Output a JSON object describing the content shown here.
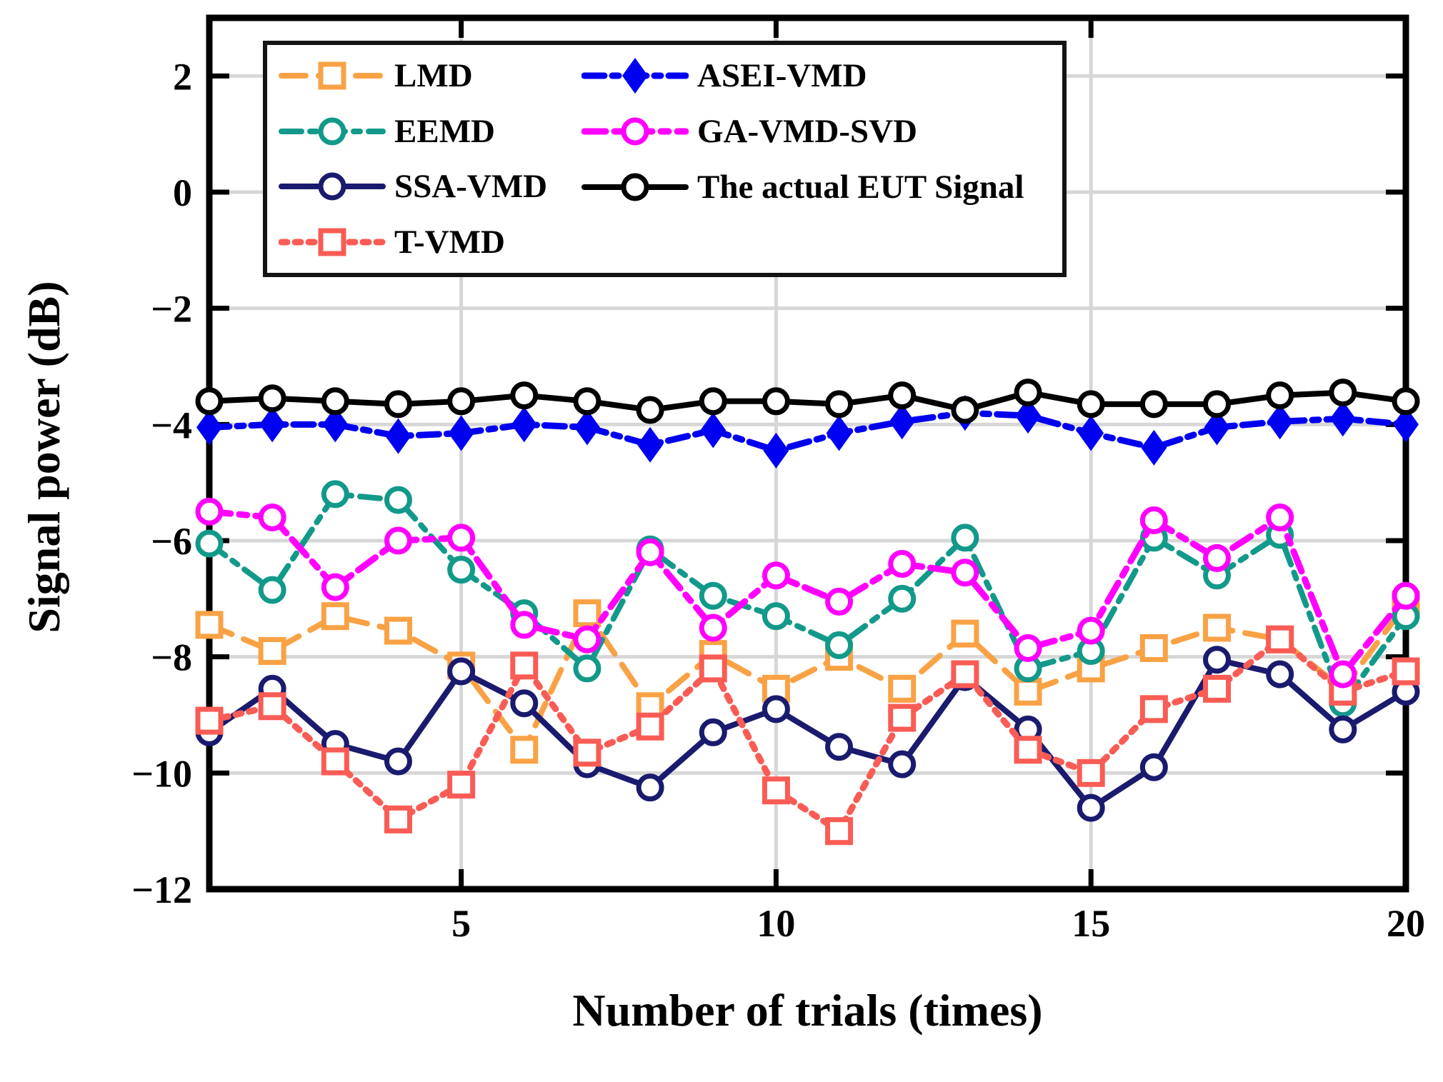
{
  "chart_data": {
    "type": "line",
    "title": "",
    "xlabel": "Number of trials (times)",
    "ylabel": "Signal power (dB)",
    "xlim": [
      1,
      20
    ],
    "ylim": [
      -12,
      3
    ],
    "xticks": [
      5,
      10,
      15,
      20
    ],
    "yticks": [
      2,
      0,
      -2,
      -4,
      -6,
      -8,
      -10,
      -12
    ],
    "grid": true,
    "grid_color": "#D7D7D7",
    "axis_color": "#000000",
    "legend_position": "top-left-inside",
    "x": [
      1,
      2,
      3,
      4,
      5,
      6,
      7,
      8,
      9,
      10,
      11,
      12,
      13,
      14,
      15,
      16,
      17,
      18,
      19,
      20
    ],
    "series": [
      {
        "name": "LMD",
        "color": "#F9A245",
        "line": "dashed",
        "dash": "34 18",
        "width": 8,
        "marker": "square-open",
        "values": [
          -7.45,
          -7.9,
          -7.3,
          -7.55,
          -8.15,
          -9.6,
          -7.25,
          -8.85,
          -7.95,
          -8.55,
          -8.0,
          -8.55,
          -7.6,
          -8.6,
          -8.2,
          -7.85,
          -7.5,
          -7.7,
          -8.55,
          -7.1
        ]
      },
      {
        "name": "EEMD",
        "color": "#12998A",
        "line": "dashdot",
        "dash": "28 12 9 12",
        "width": 8,
        "marker": "circle-open",
        "values": [
          -6.05,
          -6.85,
          -5.2,
          -5.3,
          -6.5,
          -7.25,
          -8.2,
          -6.15,
          -6.95,
          -7.3,
          -7.8,
          -7.0,
          -5.95,
          -8.2,
          -7.9,
          -5.95,
          -6.6,
          -5.9,
          -8.8,
          -7.3
        ]
      },
      {
        "name": "SSA-VMD",
        "color": "#1A1A6E",
        "line": "solid",
        "dash": "",
        "width": 8,
        "marker": "circle-open",
        "values": [
          -9.3,
          -8.55,
          -9.5,
          -9.8,
          -8.25,
          -8.8,
          -9.85,
          -10.25,
          -9.3,
          -8.9,
          -9.55,
          -9.85,
          -8.35,
          -9.25,
          -10.6,
          -9.9,
          -8.05,
          -8.3,
          -9.25,
          -8.6
        ]
      },
      {
        "name": "T-VMD",
        "color": "#F95C55",
        "line": "dotted",
        "dash": "8 11",
        "width": 9,
        "marker": "square-open",
        "values": [
          -9.1,
          -8.85,
          -9.8,
          -10.8,
          -10.2,
          -8.15,
          -9.65,
          -9.2,
          -8.2,
          -10.3,
          -11.0,
          -9.05,
          -8.3,
          -9.6,
          -10.0,
          -8.9,
          -8.55,
          -7.7,
          -8.6,
          -8.25
        ]
      },
      {
        "name": "ASEI-VMD",
        "color": "#0000F0",
        "line": "dashdot",
        "dash": "28 11 9 11",
        "width": 9,
        "marker": "diamond-filled",
        "values": [
          -4.05,
          -4.0,
          -4.0,
          -4.2,
          -4.15,
          -4.0,
          -4.05,
          -4.35,
          -4.1,
          -4.45,
          -4.15,
          -3.95,
          -3.8,
          -3.85,
          -4.15,
          -4.4,
          -4.05,
          -3.95,
          -3.9,
          -4.0
        ]
      },
      {
        "name": "GA-VMD-SVD",
        "color": "#FF00FF",
        "line": "dashdot",
        "dash": "30 12 11 12",
        "width": 9,
        "marker": "circle-open",
        "values": [
          -5.5,
          -5.6,
          -6.8,
          -6.0,
          -5.95,
          -7.45,
          -7.7,
          -6.2,
          -7.5,
          -6.6,
          -7.05,
          -6.4,
          -6.55,
          -7.85,
          -7.55,
          -5.65,
          -6.3,
          -5.6,
          -8.3,
          -6.95
        ]
      },
      {
        "name": "The actual EUT Signal",
        "color": "#000000",
        "line": "solid",
        "dash": "",
        "width": 8,
        "marker": "circle-open",
        "values": [
          -3.6,
          -3.55,
          -3.6,
          -3.65,
          -3.6,
          -3.5,
          -3.6,
          -3.75,
          -3.6,
          -3.6,
          -3.65,
          -3.5,
          -3.75,
          -3.45,
          -3.65,
          -3.65,
          -3.65,
          -3.5,
          -3.45,
          -3.6
        ]
      }
    ],
    "legend": {
      "columns": [
        [
          "LMD",
          "EEMD",
          "SSA-VMD",
          "T-VMD"
        ],
        [
          "ASEI-VMD",
          "GA-VMD-SVD",
          "The actual EUT Signal"
        ]
      ]
    }
  }
}
